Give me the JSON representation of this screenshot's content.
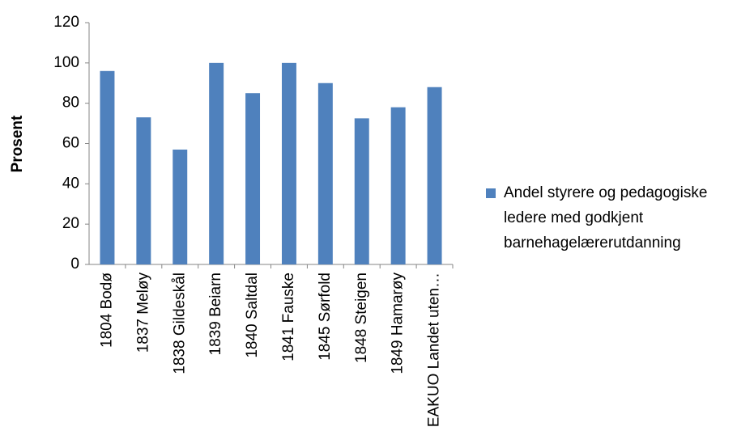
{
  "chart_data": {
    "type": "bar",
    "y_label": "Prosent",
    "categories": [
      "1804 Bodø",
      "1837 Meløy",
      "1838 Gildeskål",
      "1839 Beiarn",
      "1840 Saltdal",
      "1841 Fauske",
      "1845 Sørfold",
      "1848 Steigen",
      "1849 Hamarøy",
      "EAKUO Landet uten…"
    ],
    "series": [
      {
        "name": "Andel styrere og pedagogiske ledere med godkjent barnehagelærerutdanning",
        "color": "#4f81bd",
        "values": [
          96,
          73,
          57,
          100,
          85,
          100,
          90,
          72.5,
          78,
          88
        ]
      }
    ],
    "ylim": [
      0,
      120
    ],
    "yticks": [
      0,
      20,
      40,
      60,
      80,
      100,
      120
    ],
    "grid": false,
    "legend": "right"
  }
}
